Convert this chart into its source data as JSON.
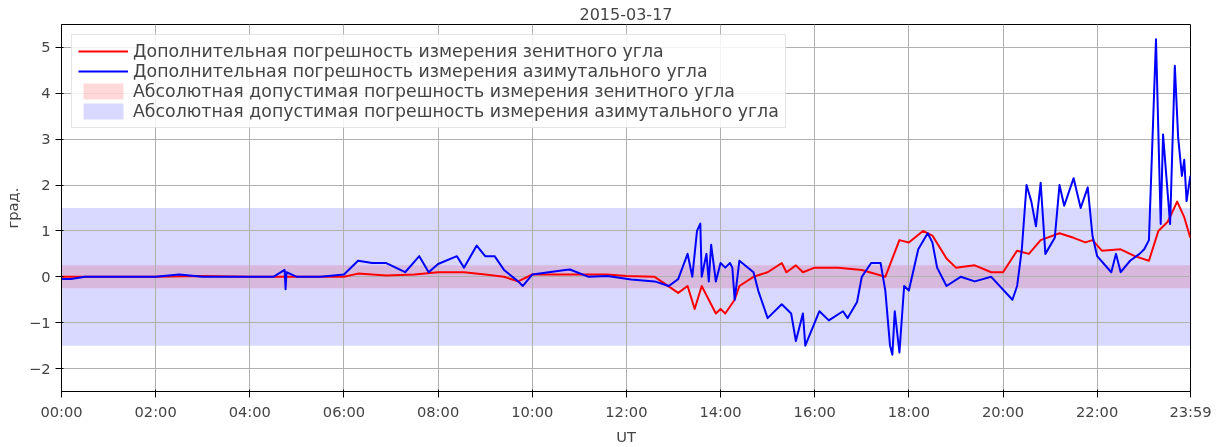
{
  "chart_data": {
    "type": "line",
    "title": "2015-03-17",
    "xlabel": "UT",
    "ylabel": "град.",
    "xlim": [
      0,
      23.983
    ],
    "ylim": [
      -2.5,
      5.5
    ],
    "xticks": [
      {
        "value": 0,
        "label": "00:00"
      },
      {
        "value": 2,
        "label": "02:00"
      },
      {
        "value": 4,
        "label": "04:00"
      },
      {
        "value": 6,
        "label": "06:00"
      },
      {
        "value": 8,
        "label": "08:00"
      },
      {
        "value": 10,
        "label": "10:00"
      },
      {
        "value": 12,
        "label": "12:00"
      },
      {
        "value": 14,
        "label": "14:00"
      },
      {
        "value": 16,
        "label": "16:00"
      },
      {
        "value": 18,
        "label": "18:00"
      },
      {
        "value": 20,
        "label": "20:00"
      },
      {
        "value": 22,
        "label": "22:00"
      },
      {
        "value": 23.983,
        "label": "23:59"
      }
    ],
    "yticks": [
      -2,
      -1,
      0,
      1,
      2,
      3,
      4,
      5
    ],
    "grid": true,
    "legend": "top left",
    "line_style": "solid",
    "marker": "none",
    "series": [
      {
        "name": "Дополнительная погрешность измерения зенитного угла",
        "color": "#ff0000",
        "x": [
          0,
          1,
          2,
          3,
          4,
          5,
          6,
          6.3,
          6.9,
          7.5,
          8,
          8.55,
          9.0,
          9.4,
          9.7,
          10.0,
          11.0,
          11.6,
          12.0,
          12.6,
          13.1,
          13.3,
          13.45,
          13.6,
          13.9,
          14.0,
          14.1,
          14.3,
          14.4,
          14.7,
          15.0,
          15.3,
          15.4,
          15.6,
          15.75,
          16.0,
          16.5,
          17.0,
          17.5,
          17.8,
          18.0,
          18.3,
          18.5,
          18.8,
          19.0,
          19.4,
          19.75,
          20.0,
          20.3,
          20.55,
          20.8,
          21.2,
          21.5,
          21.75,
          21.9,
          22.1,
          22.5,
          22.8,
          23.1,
          23.3,
          23.5,
          23.7,
          23.85,
          23.98
        ],
        "values": [
          0,
          0,
          0,
          0.02,
          0,
          0,
          0,
          0.07,
          0.03,
          0.05,
          0.1,
          0.1,
          0.05,
          0.0,
          -0.1,
          0.05,
          0.05,
          0.05,
          0.02,
          0,
          -0.35,
          -0.2,
          -0.7,
          -0.2,
          -0.8,
          -0.7,
          -0.8,
          -0.5,
          -0.2,
          0.0,
          0.1,
          0.3,
          0.1,
          0.25,
          0.1,
          0.2,
          0.2,
          0.15,
          0.0,
          0.8,
          0.75,
          1.0,
          0.9,
          0.4,
          0.2,
          0.25,
          0.1,
          0.1,
          0.57,
          0.5,
          0.8,
          0.95,
          0.85,
          0.75,
          0.8,
          0.57,
          0.6,
          0.45,
          0.35,
          1.0,
          1.2,
          1.64,
          1.3,
          0.85
        ]
      },
      {
        "name": "Дополнительная погрешность измерения азимутального угла",
        "color": "#0000ff",
        "x": [
          0,
          0.2,
          0.5,
          1,
          1.5,
          2,
          2.5,
          3,
          3.5,
          4,
          4.5,
          4.74,
          4.76,
          4.78,
          5.0,
          5.5,
          6.0,
          6.3,
          6.6,
          6.9,
          7.3,
          7.6,
          7.8,
          8.0,
          8.4,
          8.55,
          8.82,
          9.0,
          9.2,
          9.4,
          9.7,
          9.8,
          10.0,
          10.7,
          10.8,
          11.2,
          11.6,
          12.1,
          12.6,
          12.9,
          13.1,
          13.3,
          13.4,
          13.5,
          13.57,
          13.6,
          13.7,
          13.75,
          13.8,
          13.9,
          14.0,
          14.1,
          14.2,
          14.25,
          14.3,
          14.4,
          14.7,
          14.8,
          15.0,
          15.3,
          15.5,
          15.6,
          15.75,
          15.8,
          16.1,
          16.3,
          16.6,
          16.7,
          16.9,
          17.0,
          17.2,
          17.4,
          17.5,
          17.6,
          17.65,
          17.7,
          17.8,
          17.9,
          18.0,
          18.2,
          18.4,
          18.5,
          18.6,
          18.8,
          19.1,
          19.4,
          19.75,
          20.2,
          20.3,
          20.4,
          20.5,
          20.6,
          20.7,
          20.8,
          20.9,
          21.1,
          21.2,
          21.3,
          21.5,
          21.65,
          21.8,
          21.9,
          22.0,
          22.3,
          22.4,
          22.5,
          22.7,
          22.9,
          23.0,
          23.1,
          23.25,
          23.35,
          23.4,
          23.5,
          23.55,
          23.65,
          23.72,
          23.8,
          23.85,
          23.9,
          23.98
        ],
        "values": [
          -0.05,
          -0.05,
          0,
          0,
          0,
          0,
          0.05,
          0,
          0,
          0,
          0,
          0.15,
          -0.27,
          0.1,
          0,
          0,
          0.05,
          0.35,
          0.3,
          0.3,
          0.1,
          0.45,
          0.1,
          0.28,
          0.45,
          0.2,
          0.68,
          0.45,
          0.45,
          0.15,
          -0.1,
          -0.2,
          0.05,
          0.15,
          0.16,
          0,
          0.02,
          -0.06,
          -0.1,
          -0.2,
          -0.05,
          0.5,
          0,
          1.0,
          1.16,
          0,
          0.5,
          -0.1,
          0.7,
          -0.1,
          0.3,
          0.2,
          0.3,
          0.2,
          -0.5,
          0.35,
          0.1,
          -0.3,
          -0.9,
          -0.6,
          -0.8,
          -1.4,
          -0.8,
          -1.5,
          -0.75,
          -0.95,
          -0.75,
          -0.9,
          -0.55,
          0,
          0.3,
          0.3,
          -0.3,
          -1.5,
          -1.7,
          -0.75,
          -1.65,
          -0.2,
          -0.3,
          0.6,
          0.95,
          0.75,
          0.2,
          -0.2,
          0,
          -0.1,
          0,
          -0.5,
          -0.2,
          0.6,
          2.0,
          1.65,
          1.1,
          2.05,
          0.5,
          0.85,
          2.0,
          1.55,
          2.15,
          1.5,
          1.95,
          0.9,
          0.45,
          0.1,
          0.5,
          0.1,
          0.35,
          0.5,
          0.6,
          0.8,
          5.18,
          1.15,
          3.1,
          1.8,
          1.15,
          4.6,
          3.05,
          2.2,
          2.55,
          1.65,
          2.2
        ]
      }
    ],
    "bands": [
      {
        "axis": "y",
        "from": -0.25,
        "to": 0.25,
        "label": "Абсолютная допустимая погрешность измерения зенитного угла",
        "color": "#ff0000"
      },
      {
        "axis": "y",
        "from": -1.5,
        "to": 1.5,
        "label": "Абсолютная допустимая погрешность измерения азимутального угла",
        "color": "#0000ff"
      }
    ]
  }
}
